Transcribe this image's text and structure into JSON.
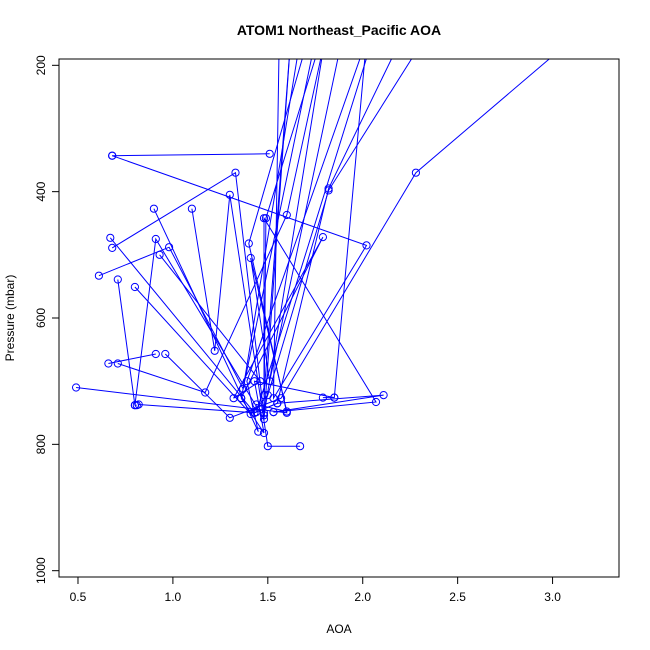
{
  "chart_data": {
    "type": "line",
    "title": "ATOM1 Northeast_Pacific AOA",
    "xlabel": "AOA",
    "ylabel": "Pressure (mbar)",
    "xlim": [
      0.4,
      3.35
    ],
    "ylim": [
      1010,
      190
    ],
    "y_reversed": true,
    "grid": false,
    "legend": "none",
    "x_ticks": [
      "0.5",
      "1.0",
      "1.5",
      "2.0",
      "2.5",
      "3.0"
    ],
    "y_ticks": [
      "200",
      "400",
      "600",
      "800",
      "1000"
    ],
    "series_color": "#0000ff",
    "markers": "open-circle",
    "series": [
      {
        "points": [
          [
            0.49,
            710
          ],
          [
            1.6,
            750
          ],
          [
            1.4,
            482
          ],
          [
            1.71,
            160
          ]
        ]
      },
      {
        "points": [
          [
            0.67,
            473
          ],
          [
            1.43,
            750
          ],
          [
            1.55,
            735
          ],
          [
            1.82,
            395
          ],
          [
            2.2,
            160
          ]
        ]
      },
      {
        "points": [
          [
            0.68,
            343
          ],
          [
            1.51,
            340
          ]
        ]
      },
      {
        "points": [
          [
            0.68,
            343
          ],
          [
            2.02,
            485
          ],
          [
            1.53,
            727
          ],
          [
            1.56,
            160
          ]
        ]
      },
      {
        "points": [
          [
            0.66,
            672
          ],
          [
            0.91,
            657
          ]
        ]
      },
      {
        "points": [
          [
            0.71,
            672
          ],
          [
            1.17,
            718
          ],
          [
            1.6,
            437
          ],
          [
            1.8,
            160
          ]
        ]
      },
      {
        "points": [
          [
            0.71,
            539
          ],
          [
            0.8,
            738
          ],
          [
            0.91,
            475
          ],
          [
            1.48,
            760
          ],
          [
            1.62,
            160
          ]
        ]
      },
      {
        "points": [
          [
            0.8,
            738
          ],
          [
            0.81,
            738
          ]
        ]
      },
      {
        "points": [
          [
            0.61,
            533
          ],
          [
            0.98,
            488
          ],
          [
            1.37,
            712
          ],
          [
            1.67,
            160
          ]
        ]
      },
      {
        "points": [
          [
            0.9,
            427
          ],
          [
            1.45,
            780
          ],
          [
            1.39,
            700
          ],
          [
            2.02,
            160
          ]
        ]
      },
      {
        "points": [
          [
            0.8,
            551
          ],
          [
            1.41,
            752
          ],
          [
            1.5,
            722
          ],
          [
            1.82,
            398
          ],
          [
            2.32,
            160
          ]
        ]
      },
      {
        "points": [
          [
            0.96,
            657
          ],
          [
            1.3,
            758
          ],
          [
            1.57,
            727
          ],
          [
            2.28,
            370
          ],
          [
            3.1,
            160
          ]
        ]
      },
      {
        "points": [
          [
            1.1,
            427
          ],
          [
            1.22,
            652
          ],
          [
            1.3,
            405
          ],
          [
            1.5,
            803
          ],
          [
            1.67,
            803
          ]
        ]
      },
      {
        "points": [
          [
            0.68,
            489
          ],
          [
            1.33,
            370
          ],
          [
            1.48,
            754
          ],
          [
            1.8,
            160
          ]
        ]
      },
      {
        "points": [
          [
            0.93,
            500
          ],
          [
            1.46,
            700
          ],
          [
            1.32,
            727
          ],
          [
            1.79,
            472
          ],
          [
            1.36,
            727
          ],
          [
            1.75,
            160
          ]
        ]
      },
      {
        "points": [
          [
            0.82,
            737
          ],
          [
            1.43,
            750
          ],
          [
            1.44,
            737
          ],
          [
            1.6,
            748
          ],
          [
            1.41,
            505
          ],
          [
            1.51,
            700
          ],
          [
            1.89,
            160
          ]
        ]
      },
      {
        "points": [
          [
            1.79,
            726
          ],
          [
            1.85,
            726
          ],
          [
            2.02,
            160
          ]
        ]
      },
      {
        "points": [
          [
            1.36,
            727
          ],
          [
            1.48,
            782
          ],
          [
            1.43,
            700
          ],
          [
            1.85,
            726
          ]
        ]
      },
      {
        "points": [
          [
            1.48,
            750
          ],
          [
            1.49,
            442
          ],
          [
            1.78,
            160
          ]
        ]
      },
      {
        "points": [
          [
            1.53,
            749
          ],
          [
            2.07,
            733
          ],
          [
            1.48,
            442
          ],
          [
            1.48,
            722
          ],
          [
            1.62,
            160
          ]
        ]
      },
      {
        "points": [
          [
            1.53,
            749
          ],
          [
            2.11,
            722
          ],
          [
            1.55,
            735
          ],
          [
            1.44,
            749
          ],
          [
            2.05,
            160
          ]
        ]
      }
    ]
  }
}
